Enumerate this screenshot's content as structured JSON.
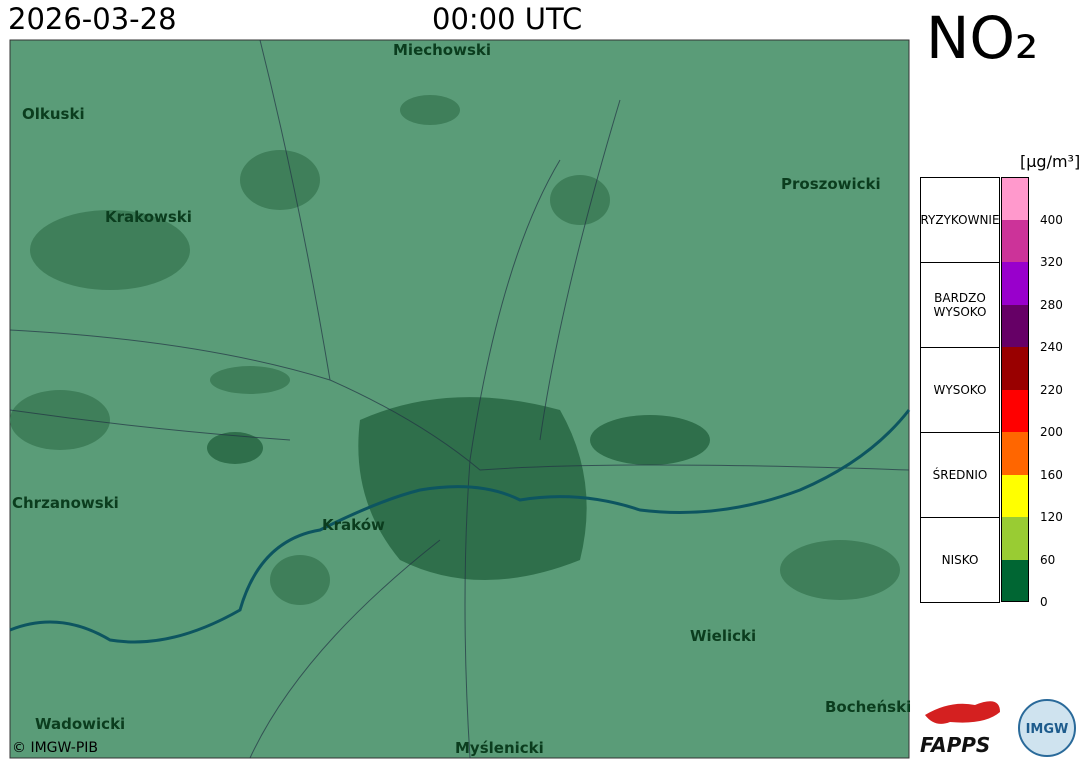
{
  "header": {
    "date": "2026-03-28",
    "time": "00:00 UTC",
    "pollutant": "NO₂",
    "unit": "[µg/m³]"
  },
  "map": {
    "places": [
      "Miechowski",
      "Olkuski",
      "Krakowski",
      "Proszowicki",
      "Chrzanowski",
      "Kraków",
      "Wielicki",
      "Wadowicki",
      "Myślenicki",
      "Bocheński"
    ],
    "copyright": "© IMGW-PIB"
  },
  "legend": {
    "categories": [
      "NISKO",
      "ŚREDNIO",
      "WYSOKO",
      "BARDZO WYSOKO",
      "RYZYKOWNIE"
    ],
    "colors": [
      "#006633",
      "#99cc33",
      "#ffff00",
      "#ff6600",
      "#ff0000",
      "#990000",
      "#660066",
      "#9900cc",
      "#cc3399",
      "#ff99cc"
    ],
    "ticks": [
      "0",
      "60",
      "120",
      "160",
      "200",
      "220",
      "240",
      "280",
      "320",
      "400"
    ]
  },
  "logos": [
    "FAPPS",
    "IMGW"
  ]
}
